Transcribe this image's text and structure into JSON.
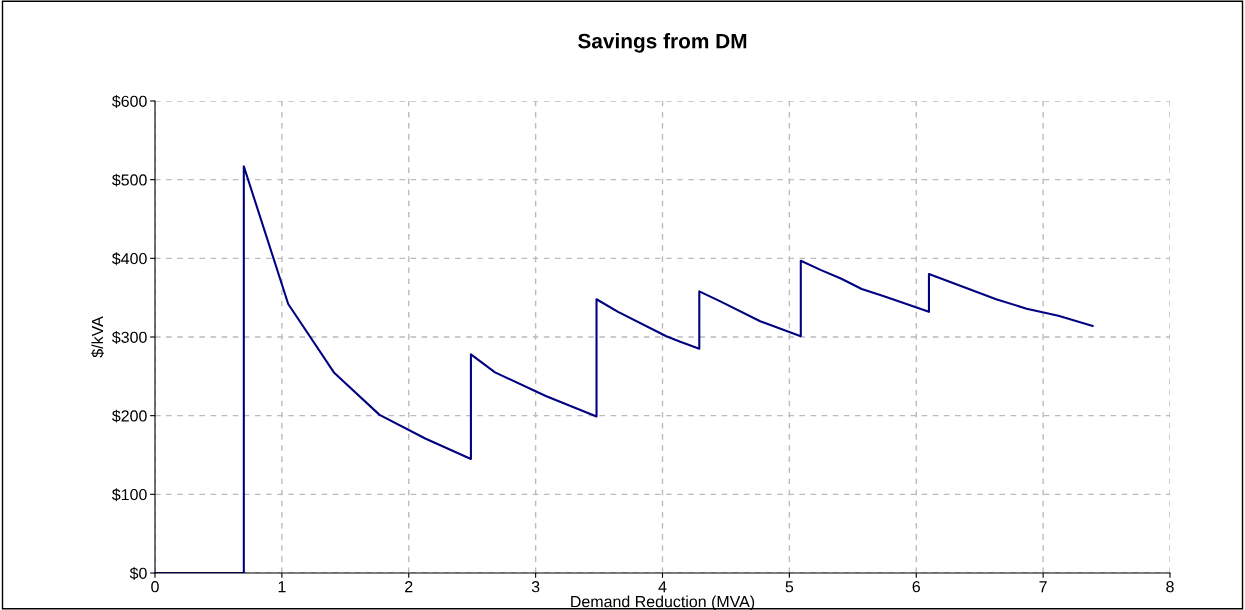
{
  "chart_data": {
    "type": "line",
    "title": "Savings from DM",
    "xlabel": "Demand Reduction (MVA)",
    "ylabel": "$/kVA",
    "xlim": [
      0,
      8
    ],
    "xticks": [
      0,
      1,
      2,
      3,
      4,
      5,
      6,
      7,
      8
    ],
    "ylim": [
      0,
      600
    ],
    "yticks": [
      {
        "value": 0,
        "label": "$0"
      },
      {
        "value": 100,
        "label": "$100"
      },
      {
        "value": 200,
        "label": "$200"
      },
      {
        "value": 300,
        "label": "$300"
      },
      {
        "value": 400,
        "label": "$400"
      },
      {
        "value": 500,
        "label": "$500"
      },
      {
        "value": 600,
        "label": "$600"
      }
    ],
    "grid": true,
    "marker": "none",
    "line_style": "solid",
    "series": [
      {
        "color": "#000080",
        "x": [
          0,
          0.7,
          0.7,
          1.05,
          1.41,
          1.77,
          2.13,
          2.49,
          2.49,
          2.68,
          3.08,
          3.48,
          3.48,
          3.65,
          4.03,
          4.14,
          4.29,
          4.29,
          4.46,
          4.77,
          5.09,
          5.09,
          5.25,
          5.41,
          5.57,
          5.74,
          6.1,
          6.1,
          6.63,
          6.87,
          7.12,
          7.39
        ],
        "values": [
          0,
          0,
          517,
          342,
          255,
          201,
          171,
          145,
          278,
          255,
          225,
          199,
          348,
          332,
          301,
          294,
          285,
          358,
          345,
          320,
          301,
          397,
          385,
          374,
          361,
          352,
          332,
          380,
          348,
          336,
          327,
          314
        ]
      }
    ]
  }
}
